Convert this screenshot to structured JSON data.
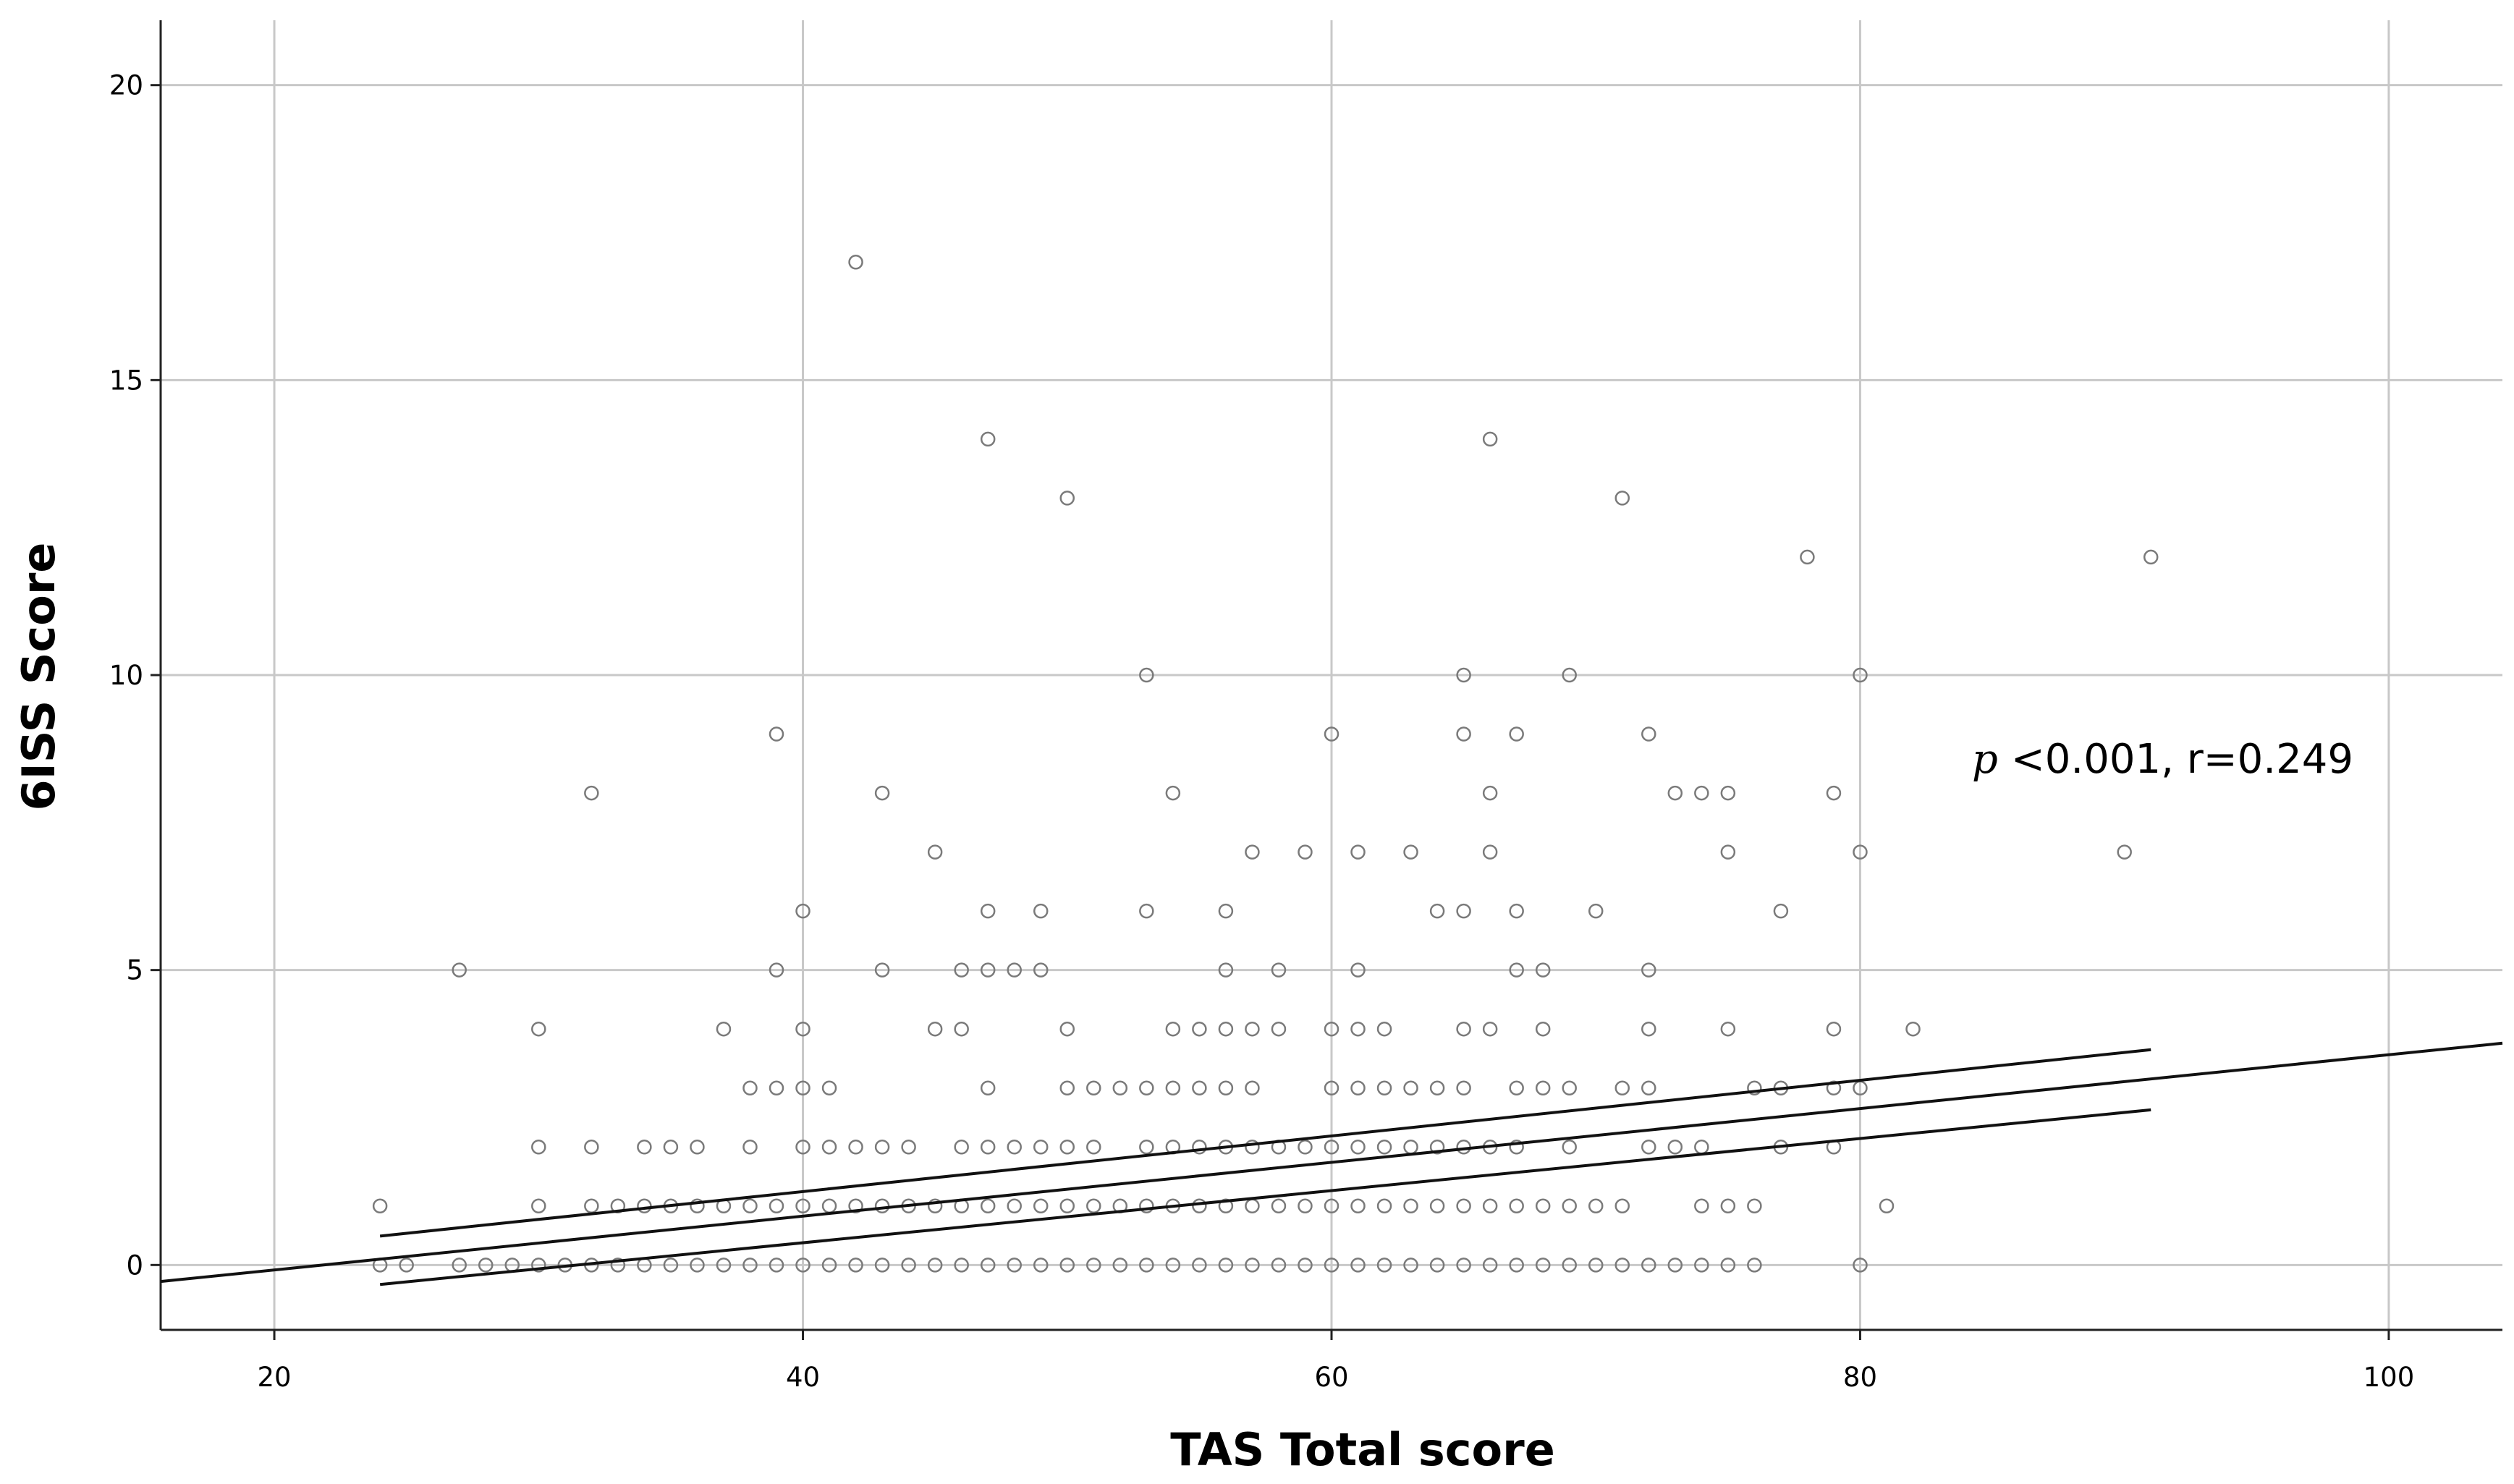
{
  "chart_data": {
    "type": "scatter",
    "title": "",
    "xlabel": "TAS Total score",
    "ylabel": "6ISS Score",
    "xlim": [
      15.7,
      104.3
    ],
    "ylim": [
      -1.1,
      21.1
    ],
    "xticks": [
      20,
      40,
      60,
      80,
      100
    ],
    "yticks": [
      0,
      5,
      10,
      15,
      20
    ],
    "xtick_labels": [
      "20",
      "40",
      "60",
      "80",
      "100"
    ],
    "ytick_labels": [
      "0",
      "5",
      "10",
      "15",
      "20"
    ],
    "grid": true,
    "annotation": {
      "p_symbol": "p",
      "text": "<0.001, r=0.249"
    },
    "points": [
      [
        24,
        1
      ],
      [
        24,
        0
      ],
      [
        25,
        0
      ],
      [
        27,
        5
      ],
      [
        27,
        0
      ],
      [
        28,
        0
      ],
      [
        29,
        0
      ],
      [
        30,
        4
      ],
      [
        30,
        2
      ],
      [
        30,
        1
      ],
      [
        30,
        0
      ],
      [
        31,
        0
      ],
      [
        32,
        8
      ],
      [
        32,
        2
      ],
      [
        32,
        1
      ],
      [
        32,
        0
      ],
      [
        33,
        1
      ],
      [
        33,
        0
      ],
      [
        34,
        2
      ],
      [
        34,
        1
      ],
      [
        34,
        0
      ],
      [
        35,
        2
      ],
      [
        35,
        1
      ],
      [
        35,
        0
      ],
      [
        36,
        2
      ],
      [
        36,
        1
      ],
      [
        36,
        0
      ],
      [
        37,
        4
      ],
      [
        37,
        1
      ],
      [
        37,
        0
      ],
      [
        38,
        3
      ],
      [
        38,
        2
      ],
      [
        38,
        1
      ],
      [
        38,
        0
      ],
      [
        39,
        9
      ],
      [
        39,
        5
      ],
      [
        39,
        3
      ],
      [
        39,
        1
      ],
      [
        39,
        0
      ],
      [
        40,
        6
      ],
      [
        40,
        4
      ],
      [
        40,
        3
      ],
      [
        40,
        2
      ],
      [
        40,
        1
      ],
      [
        40,
        0
      ],
      [
        41,
        3
      ],
      [
        41,
        2
      ],
      [
        41,
        1
      ],
      [
        41,
        0
      ],
      [
        42,
        17
      ],
      [
        42,
        2
      ],
      [
        42,
        1
      ],
      [
        42,
        0
      ],
      [
        43,
        8
      ],
      [
        43,
        5
      ],
      [
        43,
        2
      ],
      [
        43,
        1
      ],
      [
        43,
        0
      ],
      [
        44,
        2
      ],
      [
        44,
        1
      ],
      [
        44,
        0
      ],
      [
        45,
        7
      ],
      [
        45,
        4
      ],
      [
        45,
        1
      ],
      [
        45,
        0
      ],
      [
        46,
        5
      ],
      [
        46,
        4
      ],
      [
        46,
        2
      ],
      [
        46,
        1
      ],
      [
        46,
        0
      ],
      [
        47,
        14
      ],
      [
        47,
        6
      ],
      [
        47,
        5
      ],
      [
        47,
        3
      ],
      [
        47,
        2
      ],
      [
        47,
        1
      ],
      [
        47,
        0
      ],
      [
        48,
        5
      ],
      [
        48,
        2
      ],
      [
        48,
        1
      ],
      [
        48,
        0
      ],
      [
        49,
        6
      ],
      [
        49,
        5
      ],
      [
        49,
        2
      ],
      [
        49,
        1
      ],
      [
        49,
        0
      ],
      [
        50,
        13
      ],
      [
        50,
        4
      ],
      [
        50,
        3
      ],
      [
        50,
        2
      ],
      [
        50,
        1
      ],
      [
        50,
        0
      ],
      [
        51,
        3
      ],
      [
        51,
        2
      ],
      [
        51,
        1
      ],
      [
        51,
        0
      ],
      [
        52,
        3
      ],
      [
        52,
        1
      ],
      [
        52,
        0
      ],
      [
        53,
        10
      ],
      [
        53,
        6
      ],
      [
        53,
        3
      ],
      [
        53,
        2
      ],
      [
        53,
        1
      ],
      [
        53,
        0
      ],
      [
        54,
        8
      ],
      [
        54,
        4
      ],
      [
        54,
        3
      ],
      [
        54,
        2
      ],
      [
        54,
        1
      ],
      [
        54,
        0
      ],
      [
        55,
        4
      ],
      [
        55,
        3
      ],
      [
        55,
        2
      ],
      [
        55,
        1
      ],
      [
        55,
        0
      ],
      [
        56,
        6
      ],
      [
        56,
        5
      ],
      [
        56,
        4
      ],
      [
        56,
        3
      ],
      [
        56,
        2
      ],
      [
        56,
        1
      ],
      [
        56,
        0
      ],
      [
        57,
        7
      ],
      [
        57,
        4
      ],
      [
        57,
        3
      ],
      [
        57,
        2
      ],
      [
        57,
        1
      ],
      [
        57,
        0
      ],
      [
        58,
        5
      ],
      [
        58,
        4
      ],
      [
        58,
        2
      ],
      [
        58,
        1
      ],
      [
        58,
        0
      ],
      [
        59,
        7
      ],
      [
        59,
        2
      ],
      [
        59,
        1
      ],
      [
        59,
        0
      ],
      [
        60,
        9
      ],
      [
        60,
        4
      ],
      [
        60,
        3
      ],
      [
        60,
        2
      ],
      [
        60,
        1
      ],
      [
        60,
        0
      ],
      [
        61,
        7
      ],
      [
        61,
        5
      ],
      [
        61,
        4
      ],
      [
        61,
        3
      ],
      [
        61,
        2
      ],
      [
        61,
        1
      ],
      [
        61,
        0
      ],
      [
        62,
        4
      ],
      [
        62,
        3
      ],
      [
        62,
        2
      ],
      [
        62,
        1
      ],
      [
        62,
        0
      ],
      [
        63,
        7
      ],
      [
        63,
        3
      ],
      [
        63,
        2
      ],
      [
        63,
        1
      ],
      [
        63,
        0
      ],
      [
        64,
        6
      ],
      [
        64,
        3
      ],
      [
        64,
        2
      ],
      [
        64,
        1
      ],
      [
        64,
        0
      ],
      [
        65,
        10
      ],
      [
        65,
        9
      ],
      [
        65,
        6
      ],
      [
        65,
        4
      ],
      [
        65,
        3
      ],
      [
        65,
        2
      ],
      [
        65,
        1
      ],
      [
        65,
        0
      ],
      [
        66,
        14
      ],
      [
        66,
        8
      ],
      [
        66,
        7
      ],
      [
        66,
        4
      ],
      [
        66,
        2
      ],
      [
        66,
        1
      ],
      [
        66,
        0
      ],
      [
        67,
        9
      ],
      [
        67,
        6
      ],
      [
        67,
        5
      ],
      [
        67,
        3
      ],
      [
        67,
        2
      ],
      [
        67,
        1
      ],
      [
        67,
        0
      ],
      [
        68,
        5
      ],
      [
        68,
        4
      ],
      [
        68,
        3
      ],
      [
        68,
        1
      ],
      [
        68,
        0
      ],
      [
        69,
        10
      ],
      [
        69,
        3
      ],
      [
        69,
        2
      ],
      [
        69,
        1
      ],
      [
        69,
        0
      ],
      [
        70,
        6
      ],
      [
        70,
        1
      ],
      [
        70,
        0
      ],
      [
        71,
        13
      ],
      [
        71,
        3
      ],
      [
        71,
        1
      ],
      [
        71,
        0
      ],
      [
        72,
        9
      ],
      [
        72,
        5
      ],
      [
        72,
        4
      ],
      [
        72,
        3
      ],
      [
        72,
        2
      ],
      [
        72,
        0
      ],
      [
        73,
        8
      ],
      [
        73,
        2
      ],
      [
        73,
        0
      ],
      [
        74,
        8
      ],
      [
        74,
        2
      ],
      [
        74,
        1
      ],
      [
        74,
        0
      ],
      [
        75,
        8
      ],
      [
        75,
        7
      ],
      [
        75,
        4
      ],
      [
        75,
        1
      ],
      [
        75,
        0
      ],
      [
        76,
        3
      ],
      [
        76,
        1
      ],
      [
        76,
        0
      ],
      [
        77,
        6
      ],
      [
        77,
        3
      ],
      [
        77,
        2
      ],
      [
        78,
        12
      ],
      [
        79,
        8
      ],
      [
        79,
        4
      ],
      [
        79,
        3
      ],
      [
        79,
        2
      ],
      [
        80,
        10
      ],
      [
        80,
        7
      ],
      [
        80,
        3
      ],
      [
        80,
        0
      ],
      [
        81,
        1
      ],
      [
        82,
        4
      ],
      [
        90,
        7
      ],
      [
        91,
        12
      ]
    ],
    "fit_line": {
      "x": [
        15.7,
        104.3
      ],
      "y": [
        -0.28,
        3.76
      ]
    },
    "ci_upper": {
      "x": [
        24,
        91
      ],
      "y": [
        0.49,
        3.65
      ]
    },
    "ci_lower": {
      "x": [
        24,
        91
      ],
      "y": [
        -0.33,
        2.63
      ]
    }
  }
}
